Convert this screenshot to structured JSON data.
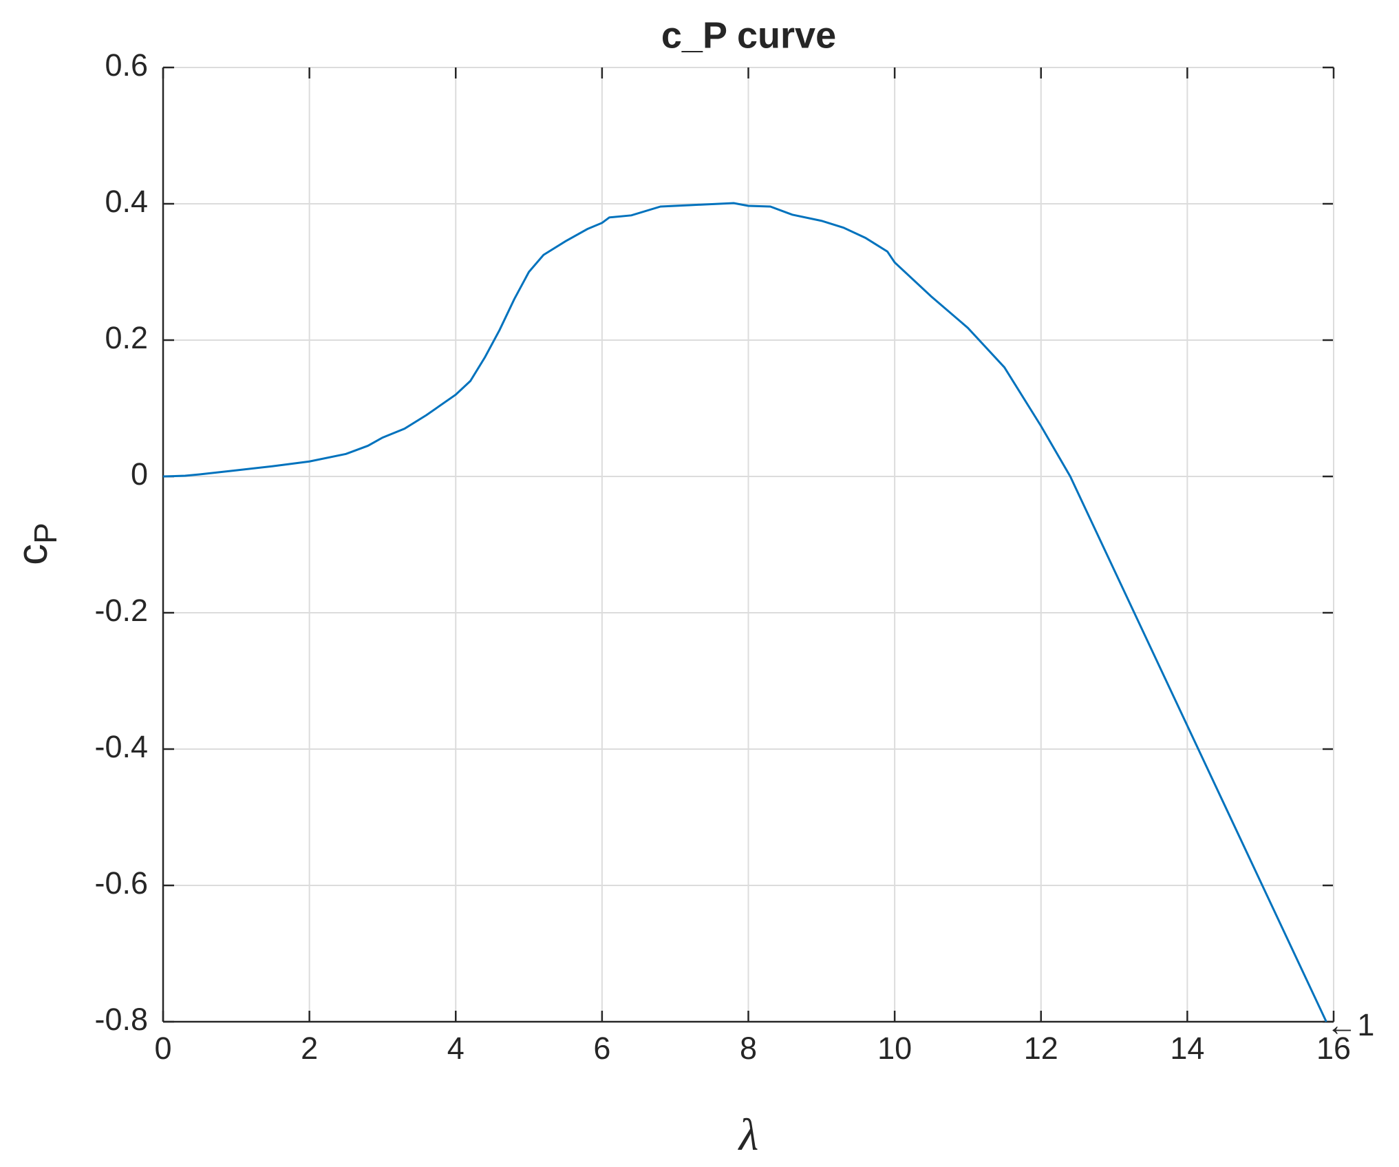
{
  "chart_data": {
    "type": "line",
    "title": "c_P curve",
    "xlabel": "λ",
    "ylabel": "c",
    "ylabel_subscript": "P",
    "x": [
      0,
      0.3,
      0.5,
      1,
      1.5,
      2,
      2.5,
      2.8,
      3,
      3.3,
      3.6,
      4,
      4.2,
      4.4,
      4.6,
      4.8,
      5,
      5.2,
      5.5,
      5.8,
      6,
      6.1,
      6.4,
      6.8,
      7.2,
      7.8,
      8,
      8.3,
      8.6,
      9,
      9.3,
      9.6,
      9.9,
      10,
      10.5,
      11,
      11.5,
      12,
      12.4,
      15.9
    ],
    "series": [
      {
        "name": "c_P",
        "color": "#0072bd",
        "values": [
          0,
          0.001,
          0.003,
          0.009,
          0.015,
          0.022,
          0.033,
          0.045,
          0.057,
          0.07,
          0.09,
          0.12,
          0.14,
          0.175,
          0.215,
          0.26,
          0.3,
          0.325,
          0.345,
          0.363,
          0.372,
          0.38,
          0.383,
          0.396,
          0.398,
          0.401,
          0.397,
          0.396,
          0.384,
          0.375,
          0.365,
          0.35,
          0.33,
          0.314,
          0.264,
          0.218,
          0.16,
          0.074,
          0,
          -0.8
        ]
      }
    ],
    "xlim": [
      0,
      16
    ],
    "ylim": [
      -0.8,
      0.6
    ],
    "xticks": [
      0,
      2,
      4,
      6,
      8,
      10,
      12,
      14,
      16
    ],
    "yticks": [
      -0.8,
      -0.6,
      -0.4,
      -0.2,
      0,
      0.2,
      0.4,
      0.6
    ],
    "grid": true,
    "annotations": [
      {
        "text": "←1",
        "x": 15.9,
        "y": -0.8
      }
    ]
  }
}
